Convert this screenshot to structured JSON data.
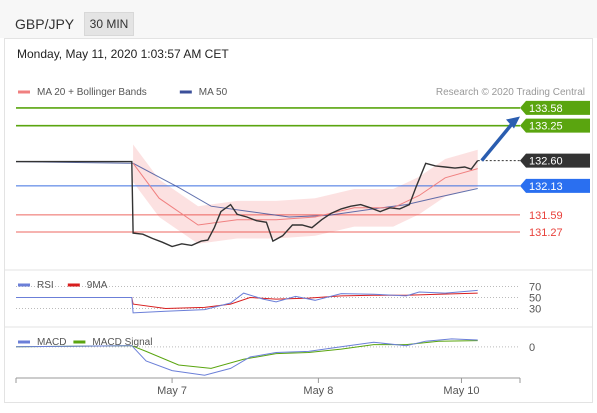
{
  "header": {
    "symbol": "GBP/JPY",
    "timeframe": "30 MIN"
  },
  "timestamp": "Monday, May 11, 2020 1:03:57 AM CET",
  "credit": "Research © 2020 Trading Central",
  "colors": {
    "resistance": "#5aa50f",
    "support": "#e8413b",
    "pivot": "#3b6fe0",
    "ma20": "#f08080",
    "ma50": "#3b4f9a",
    "price": "#333333",
    "rsi": "#6b7fd8",
    "rsi9": "#d81e1e",
    "macd": "#6b7fd8",
    "signal": "#5aa50f"
  },
  "chart_data": {
    "type": "line",
    "main": {
      "ylim": [
        130.6,
        134.1
      ],
      "legend": [
        "MA 20 + Bollinger Bands",
        "MA 50"
      ],
      "price": [
        [
          0.0,
          132.58
        ],
        [
          0.6,
          132.58
        ],
        [
          1.2,
          132.58
        ],
        [
          1.78,
          132.58
        ],
        [
          1.8,
          131.25
        ],
        [
          1.95,
          131.23
        ],
        [
          2.1,
          131.15
        ],
        [
          2.25,
          131.08
        ],
        [
          2.4,
          131.0
        ],
        [
          2.55,
          131.05
        ],
        [
          2.7,
          131.02
        ],
        [
          2.85,
          131.1
        ],
        [
          2.95,
          131.12
        ],
        [
          3.05,
          131.35
        ],
        [
          3.15,
          131.65
        ],
        [
          3.3,
          131.78
        ],
        [
          3.4,
          131.6
        ],
        [
          3.55,
          131.55
        ],
        [
          3.7,
          131.48
        ],
        [
          3.85,
          131.45
        ],
        [
          3.95,
          131.1
        ],
        [
          4.1,
          131.2
        ],
        [
          4.25,
          131.4
        ],
        [
          4.4,
          131.4
        ],
        [
          4.55,
          131.35
        ],
        [
          4.7,
          131.5
        ],
        [
          4.85,
          131.62
        ],
        [
          5.0,
          131.7
        ],
        [
          5.15,
          131.75
        ],
        [
          5.3,
          131.78
        ],
        [
          5.45,
          131.72
        ],
        [
          5.6,
          131.65
        ],
        [
          5.75,
          131.72
        ],
        [
          5.9,
          131.7
        ],
        [
          6.05,
          131.78
        ],
        [
          6.15,
          132.1
        ],
        [
          6.3,
          132.55
        ],
        [
          6.45,
          132.5
        ],
        [
          6.6,
          132.48
        ],
        [
          6.75,
          132.46
        ],
        [
          6.9,
          132.48
        ],
        [
          7.0,
          132.44
        ],
        [
          7.1,
          132.6
        ]
      ],
      "ma50": [
        [
          0.0,
          132.58
        ],
        [
          1.8,
          132.55
        ],
        [
          2.5,
          132.1
        ],
        [
          3.0,
          131.75
        ],
        [
          3.6,
          131.65
        ],
        [
          4.2,
          131.55
        ],
        [
          4.8,
          131.58
        ],
        [
          5.5,
          131.7
        ],
        [
          6.0,
          131.78
        ],
        [
          6.5,
          131.92
        ],
        [
          7.1,
          132.08
        ]
      ],
      "ma20": [
        [
          1.8,
          132.55
        ],
        [
          2.2,
          131.9
        ],
        [
          2.8,
          131.4
        ],
        [
          3.4,
          131.5
        ],
        [
          4.0,
          131.5
        ],
        [
          4.6,
          131.55
        ],
        [
          5.2,
          131.72
        ],
        [
          5.8,
          131.72
        ],
        [
          6.2,
          131.95
        ],
        [
          6.6,
          132.28
        ],
        [
          7.1,
          132.45
        ]
      ],
      "levels": [
        {
          "value": 133.58,
          "label": "133.58",
          "kind": "resistance"
        },
        {
          "value": 133.25,
          "label": "133.25",
          "kind": "resistance"
        },
        {
          "value": 132.6,
          "label": "132.60",
          "kind": "price"
        },
        {
          "value": 132.13,
          "label": "132.13",
          "kind": "pivot"
        },
        {
          "value": 131.59,
          "label": "131.59",
          "kind": "support"
        },
        {
          "value": 131.27,
          "label": "131.27",
          "kind": "support"
        }
      ],
      "forecast": {
        "from": [
          7.1,
          132.6
        ],
        "to": [
          7.75,
          133.42
        ]
      }
    },
    "rsi": {
      "legend": [
        "RSI",
        "9MA"
      ],
      "ylim": [
        0,
        100
      ],
      "ticks": [
        {
          "value": 70,
          "label": "70"
        },
        {
          "value": 50,
          "label": "50"
        },
        {
          "value": 30,
          "label": "30"
        }
      ],
      "rsi": [
        [
          0,
          50
        ],
        [
          1.78,
          50
        ],
        [
          1.8,
          22
        ],
        [
          2.3,
          25
        ],
        [
          2.9,
          28
        ],
        [
          3.3,
          40
        ],
        [
          3.5,
          58
        ],
        [
          3.8,
          47
        ],
        [
          4.0,
          42
        ],
        [
          4.3,
          52
        ],
        [
          4.6,
          45
        ],
        [
          5.0,
          57
        ],
        [
          5.5,
          56
        ],
        [
          6.0,
          53
        ],
        [
          6.2,
          60
        ],
        [
          6.6,
          58
        ],
        [
          7.1,
          63
        ]
      ],
      "ma9": [
        [
          0,
          50
        ],
        [
          1.78,
          50
        ],
        [
          1.8,
          38
        ],
        [
          2.3,
          30
        ],
        [
          2.9,
          32
        ],
        [
          3.3,
          38
        ],
        [
          3.6,
          50
        ],
        [
          4.0,
          47
        ],
        [
          4.5,
          49
        ],
        [
          5.0,
          53
        ],
        [
          5.5,
          54
        ],
        [
          6.0,
          54
        ],
        [
          6.5,
          56
        ],
        [
          7.1,
          58
        ]
      ]
    },
    "macd": {
      "legend": [
        "MACD",
        "MACD Signal"
      ],
      "ylim": [
        -0.55,
        0.35
      ],
      "ticks": [
        {
          "value": 0,
          "label": "0"
        }
      ],
      "macd": [
        [
          0,
          0.0
        ],
        [
          1.78,
          0.02
        ],
        [
          2.0,
          -0.25
        ],
        [
          2.4,
          -0.42
        ],
        [
          2.9,
          -0.5
        ],
        [
          3.3,
          -0.38
        ],
        [
          3.6,
          -0.18
        ],
        [
          4.0,
          -0.1
        ],
        [
          4.5,
          -0.08
        ],
        [
          5.0,
          0.0
        ],
        [
          5.5,
          0.08
        ],
        [
          6.0,
          0.02
        ],
        [
          6.3,
          0.1
        ],
        [
          6.7,
          0.14
        ],
        [
          7.1,
          0.12
        ]
      ],
      "signal": [
        [
          0,
          0.0
        ],
        [
          1.78,
          0.02
        ],
        [
          2.0,
          -0.08
        ],
        [
          2.5,
          -0.32
        ],
        [
          3.0,
          -0.38
        ],
        [
          3.5,
          -0.22
        ],
        [
          4.0,
          -0.12
        ],
        [
          4.5,
          -0.1
        ],
        [
          5.0,
          -0.04
        ],
        [
          5.5,
          0.04
        ],
        [
          6.0,
          0.04
        ],
        [
          6.5,
          0.1
        ],
        [
          7.1,
          0.11
        ]
      ]
    },
    "xticks": [
      {
        "x": 2.4,
        "label": "May 7"
      },
      {
        "x": 4.65,
        "label": "May 8"
      },
      {
        "x": 6.85,
        "label": "May 10"
      }
    ],
    "xlim": [
      0,
      7.75
    ]
  }
}
